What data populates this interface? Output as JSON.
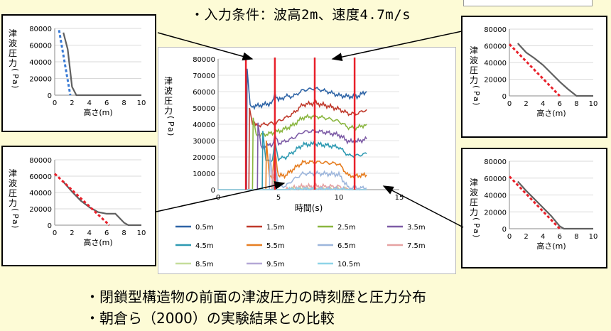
{
  "header": {
    "bullet": "・",
    "title_prefix": "入力条件：波高",
    "title_h": "2m",
    "title_mid": "、速度",
    "title_v": "4.7m/s"
  },
  "bullets": [
    "・閉鎖型構造物の前面の津波圧力の時刻歴と圧力分布",
    "・朝倉ら（2000）の実験結果との比較"
  ],
  "colors": {
    "background": "#fdfbd6",
    "marker": "#e8202a",
    "profile_line": "#606060",
    "experiment_blue": "#3a7bd5",
    "experiment_red": "#e8202a"
  },
  "chart_data": [
    {
      "id": "main",
      "type": "line",
      "title": "",
      "xlabel": "時間(s)",
      "ylabel": "津波圧力(Pa)",
      "xlim": [
        0,
        15
      ],
      "ylim": [
        0,
        80000
      ],
      "xticks": [
        0,
        5,
        10,
        15
      ],
      "yticks": [
        0,
        10000,
        20000,
        30000,
        40000,
        50000,
        60000,
        70000,
        80000
      ],
      "vertical_markers_s": [
        2.3,
        4.7,
        8.0,
        11.3
      ],
      "legend_position": "bottom",
      "series": [
        {
          "name": "0.5m",
          "color": "#2e64a6",
          "start": 2.4,
          "spike": 74000,
          "plateau": 52000,
          "peak": 62000,
          "end": 60000
        },
        {
          "name": "1.5m",
          "color": "#c0392b",
          "start": 2.6,
          "spike": 50000,
          "plateau": 40000,
          "peak": 53000,
          "end": 49000
        },
        {
          "name": "2.5m",
          "color": "#8ab640",
          "start": 2.9,
          "spike": 44000,
          "plateau": 34000,
          "peak": 45000,
          "end": 40000
        },
        {
          "name": "3.5m",
          "color": "#7d5ba6",
          "start": 3.3,
          "spike": 41000,
          "plateau": 27000,
          "peak": 36000,
          "end": 31000
        },
        {
          "name": "4.5m",
          "color": "#2e9ab2",
          "start": 3.7,
          "spike": 36000,
          "plateau": 18000,
          "peak": 28000,
          "end": 22000
        },
        {
          "name": "5.5m",
          "color": "#e67e22",
          "start": 4.0,
          "spike": 30000,
          "plateau": 8000,
          "peak": 17000,
          "end": 9000
        },
        {
          "name": "6.5m",
          "color": "#9db6dc",
          "start": 4.3,
          "spike": 22000,
          "plateau": 2000,
          "peak": 10000,
          "end": 1000
        },
        {
          "name": "7.5m",
          "color": "#e6a2a2",
          "start": 4.5,
          "spike": 12000,
          "plateau": 0,
          "peak": 2000,
          "end": 0
        },
        {
          "name": "8.5m",
          "color": "#c5dd9a",
          "start": 4.6,
          "spike": 6000,
          "plateau": 0,
          "peak": 500,
          "end": 0
        },
        {
          "name": "9.5m",
          "color": "#b4a7d6",
          "start": 4.6,
          "spike": 3000,
          "plateau": 0,
          "peak": 200,
          "end": 0
        },
        {
          "name": "10.5m",
          "color": "#8ed4e8",
          "start": 4.6,
          "spike": 1500,
          "plateau": 0,
          "peak": 100,
          "end": 0
        }
      ]
    },
    {
      "id": "top-left",
      "type": "line",
      "xlabel": "高さ(m)",
      "ylabel": "津波圧力(Pa)",
      "xlim": [
        0,
        10
      ],
      "ylim": [
        0,
        80000
      ],
      "xticks": [
        0,
        2,
        4,
        6,
        8,
        10
      ],
      "yticks": [
        0,
        20000,
        40000,
        60000,
        80000
      ],
      "simulation": [
        [
          1.0,
          75000
        ],
        [
          1.5,
          55000
        ],
        [
          2.0,
          10000
        ],
        [
          2.5,
          0
        ],
        [
          10.0,
          0
        ]
      ],
      "experiment": [
        [
          0.5,
          78000
        ],
        [
          1.8,
          0
        ]
      ]
    },
    {
      "id": "top-right",
      "type": "line",
      "xlabel": "高さ(m)",
      "ylabel": "津波圧力(Pa)",
      "xlim": [
        0,
        10
      ],
      "ylim": [
        0,
        80000
      ],
      "xticks": [
        0,
        2,
        4,
        6,
        8,
        10
      ],
      "yticks": [
        0,
        20000,
        40000,
        60000,
        80000
      ],
      "simulation": [
        [
          1.0,
          63000
        ],
        [
          2.0,
          52000
        ],
        [
          3.0,
          45000
        ],
        [
          4.0,
          37000
        ],
        [
          5.0,
          27000
        ],
        [
          6.0,
          17000
        ],
        [
          7.0,
          8000
        ],
        [
          8.0,
          0
        ],
        [
          10.0,
          0
        ]
      ],
      "experiment": [
        [
          0.0,
          62000
        ],
        [
          6.0,
          0
        ]
      ]
    },
    {
      "id": "bottom-left",
      "type": "line",
      "xlabel": "高さ(m)",
      "ylabel": "津波圧力(Pa)",
      "xlim": [
        0,
        10
      ],
      "ylim": [
        0,
        80000
      ],
      "xticks": [
        0,
        2,
        4,
        6,
        8,
        10
      ],
      "yticks": [
        0,
        20000,
        40000,
        60000,
        80000
      ],
      "simulation": [
        [
          1.0,
          53000
        ],
        [
          2.0,
          41000
        ],
        [
          3.0,
          30000
        ],
        [
          4.0,
          22000
        ],
        [
          5.0,
          16000
        ],
        [
          6.0,
          14000
        ],
        [
          7.0,
          14000
        ],
        [
          8.0,
          3000
        ],
        [
          8.5,
          0
        ],
        [
          10.0,
          0
        ]
      ],
      "experiment": [
        [
          0.0,
          63000
        ],
        [
          6.3,
          0
        ]
      ]
    },
    {
      "id": "bottom-right",
      "type": "line",
      "xlabel": "高さ(m)",
      "ylabel": "津波圧力(Pa)",
      "xlim": [
        0,
        10
      ],
      "ylim": [
        0,
        80000
      ],
      "xticks": [
        0,
        2,
        4,
        6,
        8,
        10
      ],
      "yticks": [
        0,
        20000,
        40000,
        60000,
        80000
      ],
      "simulation": [
        [
          1.0,
          56000
        ],
        [
          2.0,
          45000
        ],
        [
          3.0,
          35000
        ],
        [
          4.0,
          25000
        ],
        [
          5.0,
          15000
        ],
        [
          6.0,
          3000
        ],
        [
          6.5,
          0
        ],
        [
          10.0,
          0
        ]
      ],
      "experiment": [
        [
          0.0,
          62000
        ],
        [
          6.0,
          0
        ]
      ]
    }
  ]
}
